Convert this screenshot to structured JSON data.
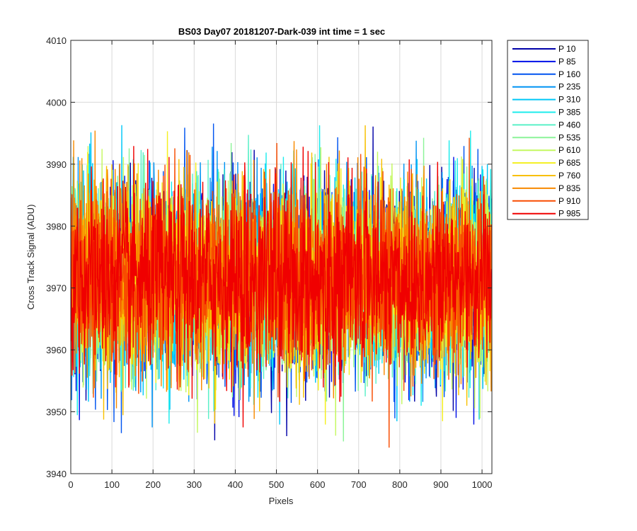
{
  "chart_data": {
    "type": "line",
    "title": "BS03 Day07 20181207-Dark-039 int time = 1 sec",
    "xlabel": "Pixels",
    "ylabel": "Cross Track Signal (ADU)",
    "xlim": [
      0,
      1024
    ],
    "ylim": [
      3940,
      4010
    ],
    "xticks": [
      0,
      100,
      200,
      300,
      400,
      500,
      600,
      700,
      800,
      900,
      1000
    ],
    "yticks": [
      3940,
      3950,
      3960,
      3970,
      3980,
      3990,
      4000,
      4010
    ],
    "xtick_labels": [
      "0",
      "100",
      "200",
      "300",
      "400",
      "500",
      "600",
      "700",
      "800",
      "900",
      "1000"
    ],
    "ytick_labels": [
      "3940",
      "3950",
      "3960",
      "3970",
      "3980",
      "3990",
      "4000",
      "4010"
    ],
    "grid": true,
    "legend_position": "outside-top-right",
    "x_points": 1024,
    "series": [
      {
        "name": "P 10",
        "color": "#0000a8",
        "mean": 3971.5,
        "min": 3944,
        "max": 3999
      },
      {
        "name": "P 85",
        "color": "#0010e8",
        "mean": 3971.5,
        "min": 3947,
        "max": 3999
      },
      {
        "name": "P 160",
        "color": "#0054f0",
        "mean": 3971.5,
        "min": 3945,
        "max": 3997
      },
      {
        "name": "P 235",
        "color": "#0094f4",
        "mean": 3971.5,
        "min": 3947,
        "max": 3997
      },
      {
        "name": "P 310",
        "color": "#00c8f8",
        "mean": 3971.5,
        "min": 3947,
        "max": 3998
      },
      {
        "name": "P 385",
        "color": "#1cecec",
        "mean": 3971.5,
        "min": 3946,
        "max": 3998
      },
      {
        "name": "P 460",
        "color": "#5af0c8",
        "mean": 3971.5,
        "min": 3946,
        "max": 3997
      },
      {
        "name": "P 535",
        "color": "#8cf498",
        "mean": 3971.5,
        "min": 3943,
        "max": 3998
      },
      {
        "name": "P 610",
        "color": "#c4f860",
        "mean": 3971.5,
        "min": 3943,
        "max": 3997
      },
      {
        "name": "P 685",
        "color": "#f4f020",
        "mean": 3971.5,
        "min": 3947,
        "max": 3997
      },
      {
        "name": "P 760",
        "color": "#f8c000",
        "mean": 3971.5,
        "min": 3947,
        "max": 4002
      },
      {
        "name": "P 835",
        "color": "#f88a00",
        "mean": 3971.5,
        "min": 3944,
        "max": 3996
      },
      {
        "name": "P 910",
        "color": "#f84c00",
        "mean": 3971.5,
        "min": 3942,
        "max": 3996
      },
      {
        "name": "P 985",
        "color": "#f00000",
        "mean": 3971.5,
        "min": 3947,
        "max": 3999
      }
    ]
  }
}
